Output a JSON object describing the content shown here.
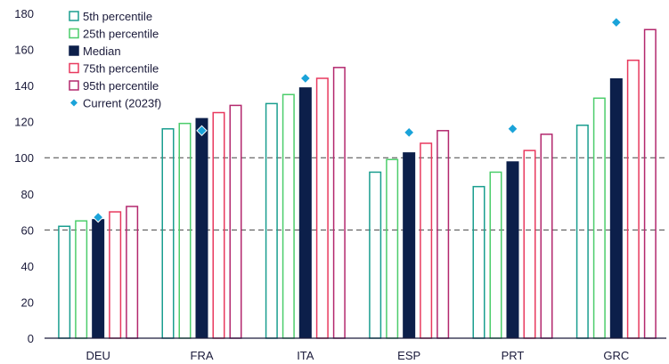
{
  "chart_data": {
    "type": "bar",
    "categories": [
      "DEU",
      "FRA",
      "ITA",
      "ESP",
      "PRT",
      "GRC"
    ],
    "series": [
      {
        "name": "5th percentile",
        "kind": "bar",
        "color": "#1a9e8f",
        "fill": "none",
        "values": [
          62,
          116,
          130,
          92,
          84,
          118
        ]
      },
      {
        "name": "25th percentile",
        "kind": "bar",
        "color": "#4ccd6b",
        "fill": "none",
        "values": [
          65,
          119,
          135,
          99,
          92,
          133
        ]
      },
      {
        "name": "Median",
        "kind": "bar",
        "color": "#0c1f4a",
        "fill": "#0c1f4a",
        "values": [
          66,
          122,
          139,
          103,
          98,
          144
        ]
      },
      {
        "name": "75th percentile",
        "kind": "bar",
        "color": "#e8395e",
        "fill": "none",
        "values": [
          70,
          125,
          144,
          108,
          104,
          154
        ]
      },
      {
        "name": "95th percentile",
        "kind": "bar",
        "color": "#b3286e",
        "fill": "none",
        "values": [
          73,
          129,
          150,
          115,
          113,
          171
        ]
      },
      {
        "name": "Current (2023f)",
        "kind": "marker",
        "color": "#1aa3d9",
        "values": [
          67,
          115,
          144,
          114,
          116,
          175
        ]
      }
    ],
    "yticks": [
      0,
      20,
      40,
      60,
      80,
      100,
      120,
      140,
      160,
      180
    ],
    "ylim": [
      0,
      180
    ],
    "reference_lines": [
      60,
      100
    ],
    "legend_position": "top-left",
    "grid": false
  }
}
